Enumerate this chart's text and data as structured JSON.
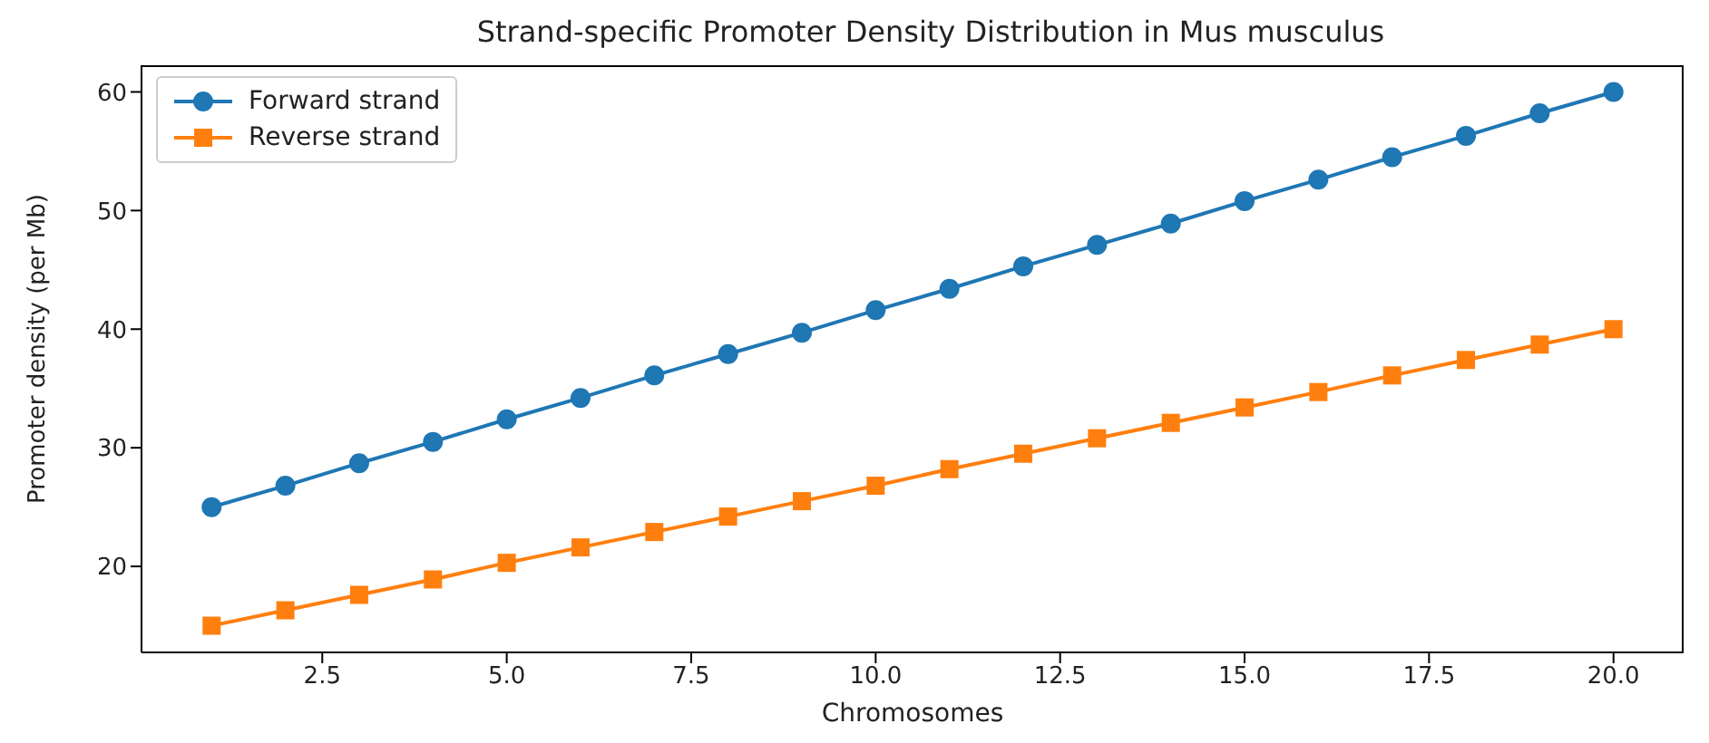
{
  "chart_data": {
    "type": "line",
    "title": "Strand-specific Promoter Density Distribution in Mus musculus",
    "xlabel": "Chromosomes",
    "ylabel": "Promoter density (per Mb)",
    "x": [
      1,
      2,
      3,
      4,
      5,
      6,
      7,
      8,
      9,
      10,
      11,
      12,
      13,
      14,
      15,
      16,
      17,
      18,
      19,
      20
    ],
    "series": [
      {
        "name": "Forward strand",
        "color": "#1f77b4",
        "marker": "circle",
        "values": [
          25,
          26.8,
          28.7,
          30.5,
          32.4,
          34.2,
          36.1,
          37.9,
          39.7,
          41.6,
          43.4,
          45.3,
          47.1,
          48.9,
          50.8,
          52.6,
          54.5,
          56.3,
          58.2,
          60
        ]
      },
      {
        "name": "Reverse strand",
        "color": "#ff7f0e",
        "marker": "square",
        "values": [
          15,
          16.3,
          17.6,
          18.9,
          20.3,
          21.6,
          22.9,
          24.2,
          25.5,
          26.8,
          28.2,
          29.5,
          30.8,
          32.1,
          33.4,
          34.7,
          36.1,
          37.4,
          38.7,
          40
        ]
      }
    ],
    "xlim": [
      0.05,
      20.95
    ],
    "xticks": [
      {
        "value": 2.5,
        "label": "2.5"
      },
      {
        "value": 5,
        "label": "5.0"
      },
      {
        "value": 7.5,
        "label": "7.5"
      },
      {
        "value": 10,
        "label": "10.0"
      },
      {
        "value": 12.5,
        "label": "12.5"
      },
      {
        "value": 15,
        "label": "15.0"
      },
      {
        "value": 17.5,
        "label": "17.5"
      },
      {
        "value": 20,
        "label": "20.0"
      }
    ],
    "ylim": [
      12.75,
      62.25
    ],
    "yticks": [
      20,
      30,
      40,
      50,
      60
    ],
    "grid": false,
    "legend": "top left",
    "line_style": "solid"
  }
}
